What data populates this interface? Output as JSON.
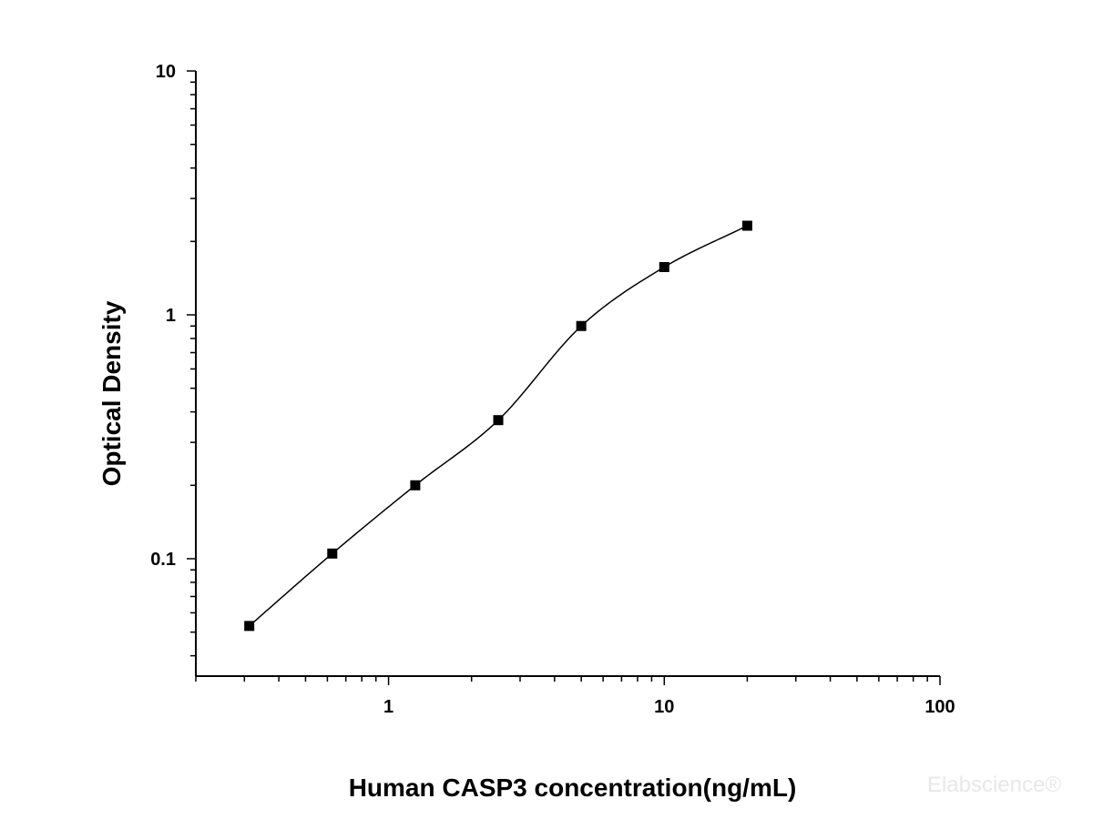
{
  "chart_data": {
    "type": "scatter",
    "xlabel": "Human CASP3 concentration(ng/mL)",
    "ylabel": "Optical Density",
    "x_scale": "log",
    "y_scale": "log",
    "xlim": [
      0.2,
      100
    ],
    "ylim": [
      0.033,
      10
    ],
    "x_ticks": [
      {
        "value": 1,
        "label": "1"
      },
      {
        "value": 10,
        "label": "10"
      },
      {
        "value": 100,
        "label": "100"
      }
    ],
    "y_ticks": [
      {
        "value": 0.1,
        "label": "0.1"
      },
      {
        "value": 1,
        "label": "1"
      },
      {
        "value": 10,
        "label": "10"
      }
    ],
    "grid": false,
    "series": [
      {
        "marker": "square",
        "color": "#000000",
        "points": [
          {
            "x": 0.3125,
            "y": 0.053
          },
          {
            "x": 0.625,
            "y": 0.105
          },
          {
            "x": 1.25,
            "y": 0.2
          },
          {
            "x": 2.5,
            "y": 0.37
          },
          {
            "x": 5,
            "y": 0.9
          },
          {
            "x": 10,
            "y": 1.57
          },
          {
            "x": 20,
            "y": 2.32
          }
        ]
      }
    ],
    "fit_curve": {
      "type": "four-parameter logistic",
      "color": "#000000"
    }
  },
  "watermark": "Elabscience®"
}
